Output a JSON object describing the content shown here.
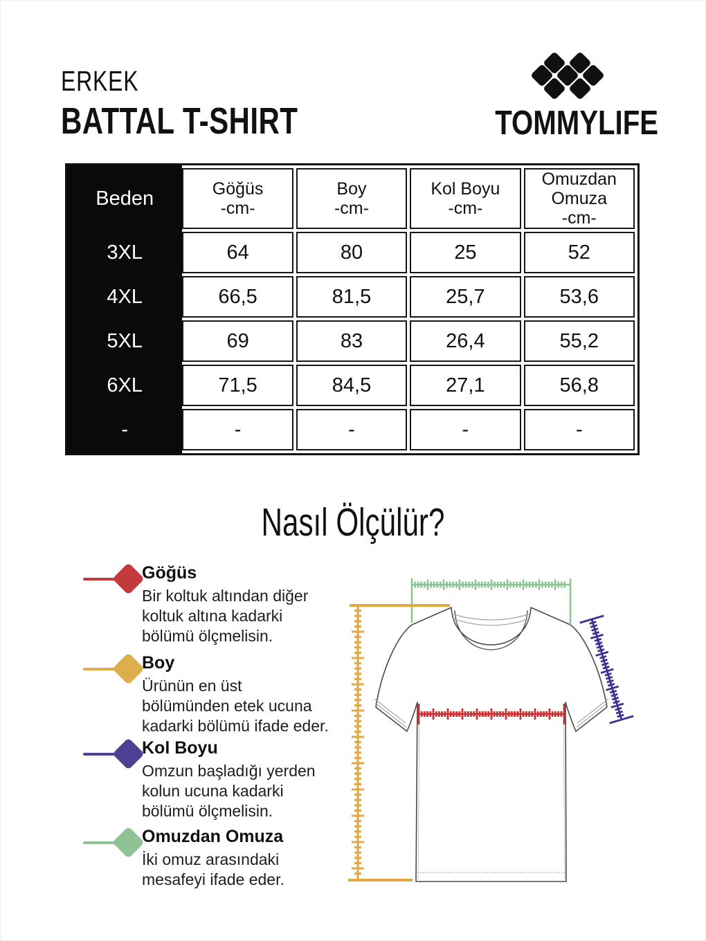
{
  "header": {
    "product_line1": "ERKEK",
    "product_line2": "BATTAL T-SHIRT",
    "brand": "TOMMYLIFE"
  },
  "size_table": {
    "columns": [
      {
        "label": "Beden",
        "unit": ""
      },
      {
        "label": "Göğüs",
        "unit": "-cm-"
      },
      {
        "label": "Boy",
        "unit": "-cm-"
      },
      {
        "label": "Kol Boyu",
        "unit": "-cm-"
      },
      {
        "label": "Omuzdan Omuza",
        "unit": "-cm-"
      }
    ],
    "rows": [
      {
        "size": "3XL",
        "values": [
          "64",
          "80",
          "25",
          "52"
        ]
      },
      {
        "size": "4XL",
        "values": [
          "66,5",
          "81,5",
          "25,7",
          "53,6"
        ]
      },
      {
        "size": "5XL",
        "values": [
          "69",
          "83",
          "26,4",
          "55,2"
        ]
      },
      {
        "size": "6XL",
        "values": [
          "71,5",
          "84,5",
          "27,1",
          "56,8"
        ]
      },
      {
        "size": "-",
        "values": [
          "-",
          "-",
          "-",
          "-"
        ]
      }
    ]
  },
  "how_to": {
    "heading": "Nasıl Ölçülür?"
  },
  "legend": {
    "items": [
      {
        "label": "Göğüs",
        "description": "Bir koltuk altından diğer koltuk altına kadarki bölümü ölçmelisin.",
        "color": "#c23a3c"
      },
      {
        "label": "Boy",
        "description": "Ürünün en üst bölümünden etek ucuna kadarki bölümü ifade eder.",
        "color": "#ddae4c"
      },
      {
        "label": "Kol Boyu",
        "description": "Omzun başladığı yerden kolun ucuna kadarki bölümü ölçmelisin.",
        "color": "#4c4195"
      },
      {
        "label": "Omuzdan Omuza",
        "description": "İki omuz arasındaki mesafeyi ifade eder.",
        "color": "#8fc295"
      }
    ]
  },
  "diagram": {
    "rulers": [
      {
        "name": "shoulder-ruler",
        "measure": "Omuzdan Omuza",
        "color": "#8cc593"
      },
      {
        "name": "chest-ruler",
        "measure": "Göğüs",
        "color": "#cc3134"
      },
      {
        "name": "length-ruler",
        "measure": "Boy",
        "color": "#e2a943"
      },
      {
        "name": "sleeve-ruler",
        "measure": "Kol Boyu",
        "color": "#3d3193"
      }
    ]
  }
}
